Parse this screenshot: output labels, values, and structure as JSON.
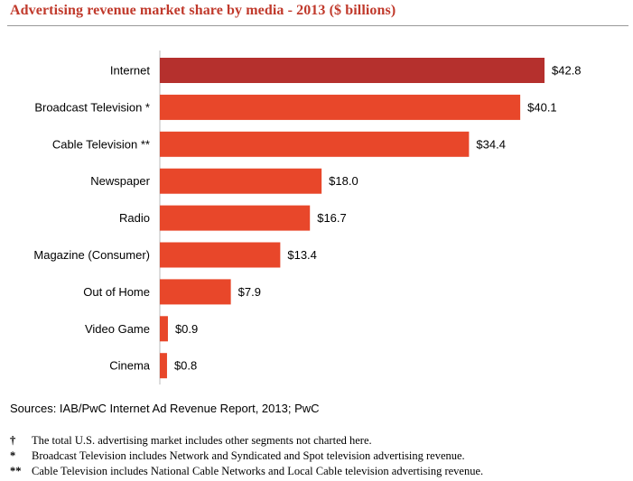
{
  "header": {
    "title": "Advertising revenue market share by media - 2013 ($ billions)"
  },
  "chart_data": {
    "type": "bar",
    "orientation": "horizontal",
    "categories": [
      "Internet",
      "Broadcast Television *",
      "Cable Television **",
      "Newspaper",
      "Radio",
      "Magazine (Consumer)",
      "Out of Home",
      "Video Game",
      "Cinema"
    ],
    "values": [
      42.8,
      40.1,
      34.4,
      18.0,
      16.7,
      13.4,
      7.9,
      0.9,
      0.8
    ],
    "value_labels": [
      "$42.8",
      "$40.1",
      "$34.4",
      "$18.0",
      "$16.7",
      "$13.4",
      "$7.9",
      "$0.9",
      "$0.8"
    ],
    "title": "Advertising revenue market share by media - 2013 ($ billions)",
    "xlabel": "",
    "ylabel": "",
    "xlim": [
      0,
      42.8
    ],
    "grid": false,
    "colors": {
      "highlight": "#b5302d",
      "default": "#e8472a"
    }
  },
  "footer": {
    "sources": "Sources: IAB/PwC Internet Ad Revenue Report, 2013; PwC",
    "notes": [
      {
        "symbol": "†",
        "text": "The total U.S. advertising market includes other segments not charted here."
      },
      {
        "symbol": "*",
        "text": "Broadcast Television includes Network and Syndicated and Spot television advertising revenue."
      },
      {
        "symbol": "**",
        "text": "Cable Television includes National Cable Networks and Local Cable television advertising revenue."
      }
    ]
  }
}
